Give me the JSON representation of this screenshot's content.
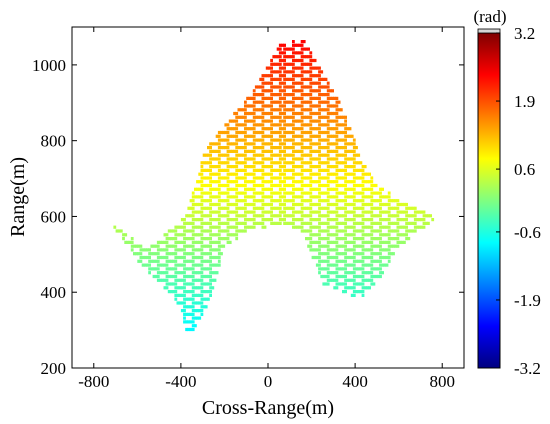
{
  "chart_data": {
    "type": "heatmap",
    "title": "",
    "xlabel": "Cross-Range(m)",
    "ylabel": "Range(m)",
    "xlim": [
      -900,
      900
    ],
    "ylim": [
      200,
      1100
    ],
    "x_ticks": [
      -800,
      -400,
      0,
      400,
      800
    ],
    "x_tick_labels": [
      "-800",
      "-400",
      "0",
      "400",
      "800"
    ],
    "y_ticks": [
      200,
      400,
      600,
      800,
      1000
    ],
    "y_tick_labels": [
      "200",
      "400",
      "600",
      "800",
      "1000"
    ],
    "grid": false,
    "colorbar": {
      "label": "(rad)",
      "range": [
        -3.2,
        3.2
      ],
      "ticks": [
        3.2,
        1.9,
        0.6,
        -0.6,
        -1.9,
        -3.2
      ],
      "tick_labels": [
        "3.2",
        "1.9",
        "0.6",
        "-0.6",
        "-1.9",
        "-3.2"
      ],
      "colormap": "jet"
    },
    "region_outline": [
      [
        -720,
        580
      ],
      [
        -560,
        510
      ],
      [
        -380,
        600
      ],
      [
        -300,
        770
      ],
      [
        -160,
        870
      ],
      [
        -60,
        940
      ],
      [
        50,
        1050
      ],
      [
        160,
        1070
      ],
      [
        230,
        1000
      ],
      [
        340,
        880
      ],
      [
        430,
        740
      ],
      [
        500,
        680
      ],
      [
        580,
        650
      ],
      [
        740,
        610
      ],
      [
        760,
        590
      ],
      [
        600,
        520
      ],
      [
        520,
        440
      ],
      [
        420,
        380
      ],
      [
        250,
        420
      ],
      [
        150,
        560
      ],
      [
        60,
        580
      ],
      [
        -80,
        560
      ],
      [
        -200,
        520
      ],
      [
        -280,
        360
      ],
      [
        -370,
        280
      ],
      [
        -420,
        370
      ],
      [
        -600,
        480
      ],
      [
        -700,
        560
      ]
    ],
    "phase_model": "phase = -3.2 + 6.4 * frac((range - 420) / 200 + |cross_range| / 900 + 0.35)",
    "fringe_spacing_m": 20
  }
}
